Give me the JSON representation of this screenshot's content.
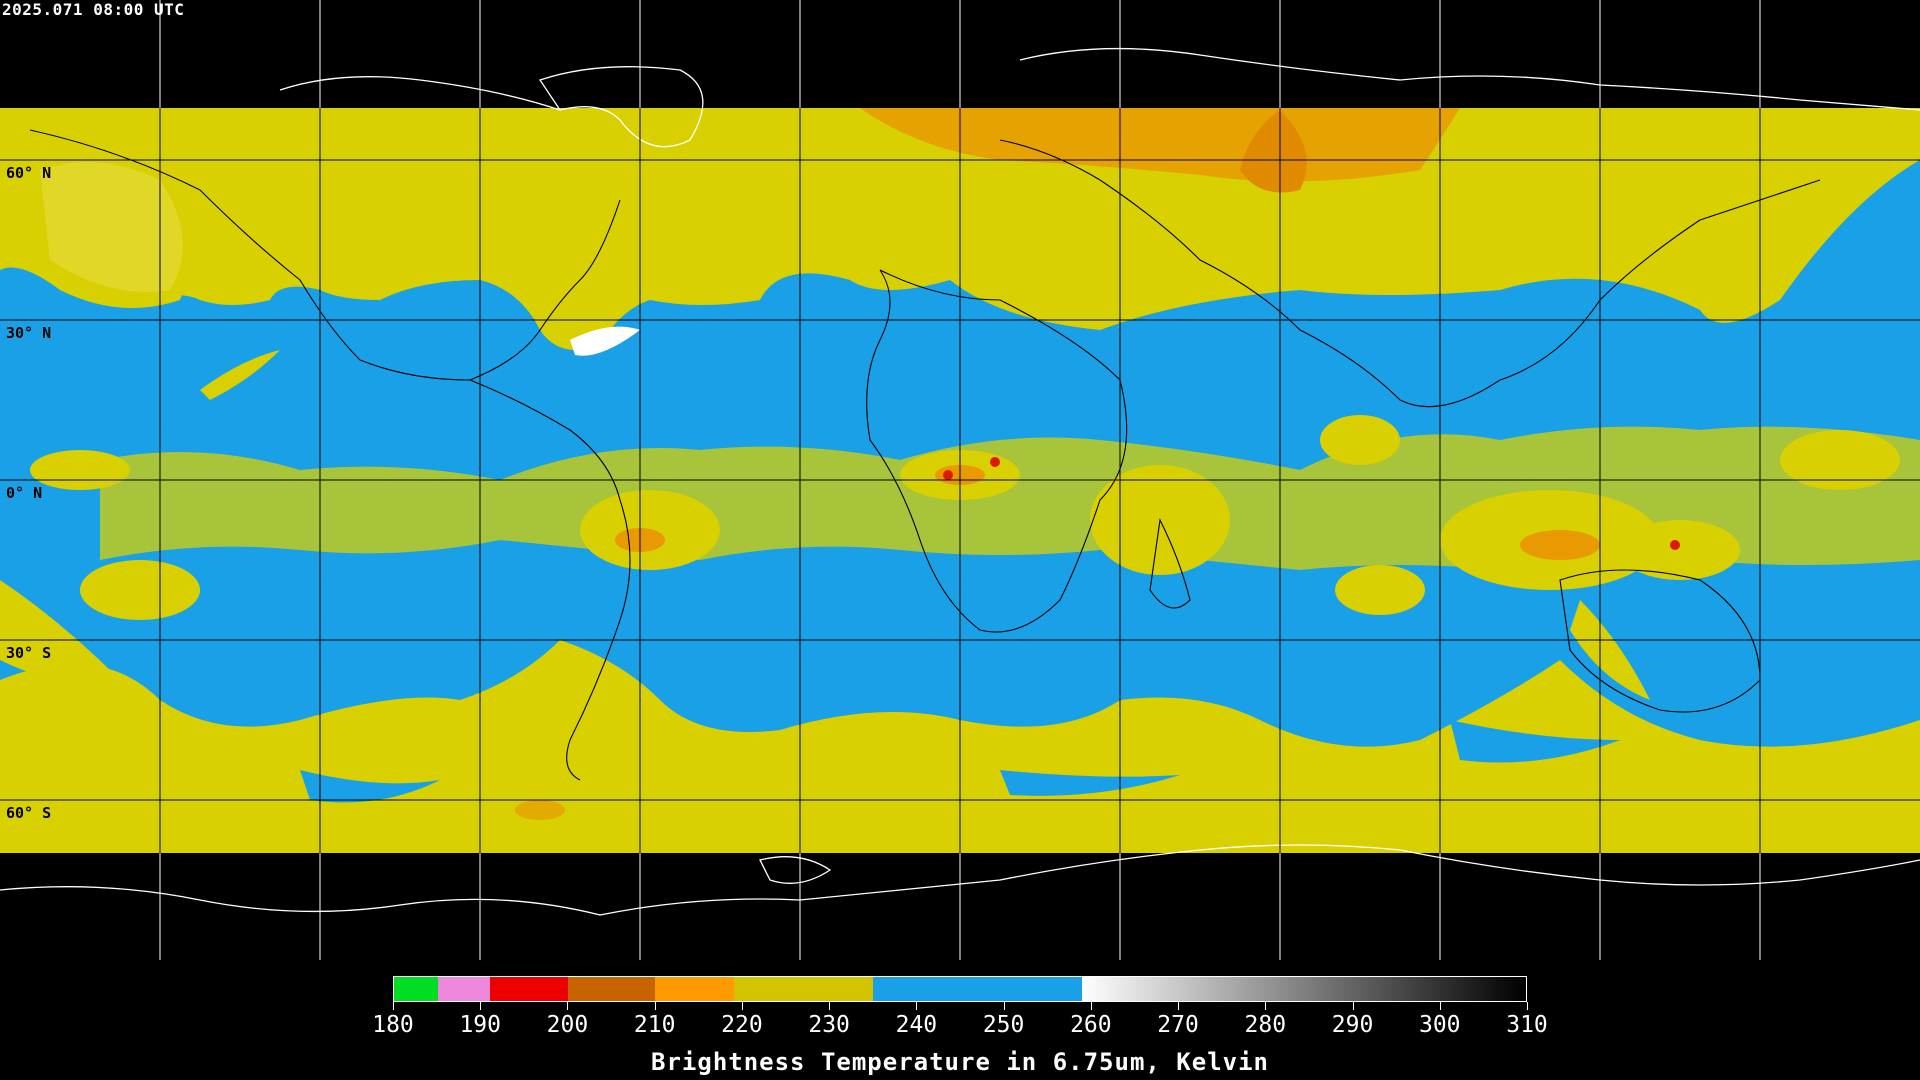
{
  "timestamp": "2025.071 08:00 UTC",
  "latitude_labels": [
    "60° N",
    "30° N",
    "0° N",
    "30° S",
    "60° S"
  ],
  "colorbar": {
    "ticks": [
      "180",
      "190",
      "200",
      "210",
      "220",
      "230",
      "240",
      "250",
      "260",
      "270",
      "280",
      "290",
      "300",
      "310"
    ],
    "range": [
      180,
      310
    ],
    "segments": [
      {
        "from": 180,
        "to": 185,
        "color": "#00dd22"
      },
      {
        "from": 185,
        "to": 191,
        "color": "#ee88dd"
      },
      {
        "from": 191,
        "to": 200,
        "color": "#ee0000"
      },
      {
        "from": 200,
        "to": 210,
        "color": "#c86400"
      },
      {
        "from": 210,
        "to": 219,
        "color": "#ff9a00"
      },
      {
        "from": 219,
        "to": 235,
        "color": "#d4c400"
      },
      {
        "from": 235,
        "to": 259,
        "color": "#1aa0e6"
      },
      {
        "from": 259,
        "to": 310,
        "color": "gradient-white-black"
      }
    ],
    "title": "Brightness Temperature in 6.75um, Kelvin"
  },
  "colors": {
    "clear_sky": "#1aa0e6",
    "moist_yellow": "#d8d000",
    "cold_orange": "#e89a00",
    "deep_red": "#dd1a00",
    "background": "#000000",
    "grid": "#000000",
    "coastline": "#ffffff"
  }
}
